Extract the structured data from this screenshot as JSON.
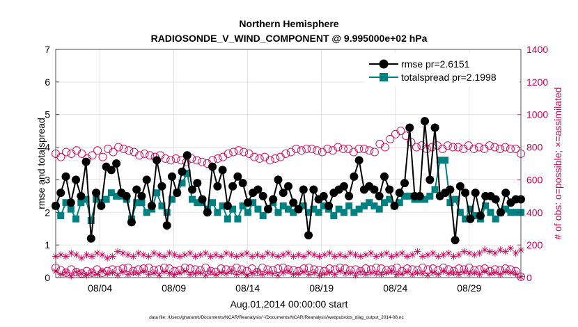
{
  "chart_data": {
    "type": "line",
    "title_line1": "Northern Hemisphere",
    "title_line2": "RADIOSONDE_V_WIND_COMPONENT @ 9.995000e+02 hPa",
    "xlabel": "Aug.01,2014 00:00:00 start",
    "ylabel_left": "rmse and totalspread",
    "ylabel_right": "# of obs: o=possible; ×=assimilated",
    "footnote": "data file: /Users/gharamti/Documents/NCAR/Reanalysis/~/Documents/NCAR/Reanalysis/webpub/obs_diag_output_2014-08.nc",
    "xlim": [
      0,
      31.5
    ],
    "ylim_left": [
      0,
      7
    ],
    "ylim_right": [
      0,
      1400
    ],
    "yticks_left": [
      "0",
      "1",
      "2",
      "3",
      "4",
      "5",
      "6",
      "7"
    ],
    "yticks_right": [
      "0",
      "200",
      "400",
      "600",
      "800",
      "1000",
      "1200",
      "1400"
    ],
    "xticks": [
      {
        "label": "08/04",
        "value": 3
      },
      {
        "label": "08/09",
        "value": 8
      },
      {
        "label": "08/14",
        "value": 13
      },
      {
        "label": "08/19",
        "value": 18
      },
      {
        "label": "08/24",
        "value": 23
      },
      {
        "label": "08/29",
        "value": 28
      }
    ],
    "colors": {
      "rmse": "#000000",
      "totalspread": "#008080",
      "obs": "#cc0055"
    },
    "legend": [
      {
        "label": "rmse pr=2.6151",
        "key": "rmse"
      },
      {
        "label": "totalspread pr=2.1998",
        "key": "totalspread"
      }
    ],
    "rmse": [
      2.2,
      2.6,
      3.1,
      2.3,
      3.0,
      2.5,
      3.55,
      1.2,
      2.6,
      2.2,
      3.4,
      3.3,
      3.5,
      2.6,
      2.5,
      1.7,
      2.7,
      2.5,
      3.0,
      2.2,
      3.6,
      2.8,
      1.6,
      3.1,
      2.6,
      3.25,
      3.75,
      2.7,
      2.9,
      2.4,
      2.0,
      3.4,
      2.8,
      3.3,
      2.2,
      2.8,
      3.1,
      2.9,
      2.3,
      2.6,
      2.7,
      2.5,
      2.1,
      2.4,
      3.0,
      2.6,
      2.8,
      2.3,
      2.1,
      2.7,
      1.3,
      2.7,
      2.4,
      2.5,
      2.2,
      2.6,
      2.7,
      2.8,
      2.5,
      3.1,
      3.6,
      2.7,
      2.8,
      2.7,
      2.5,
      3.1,
      2.7,
      2.2,
      2.6,
      2.9,
      4.6,
      2.5,
      2.5,
      4.8,
      3.0,
      4.6,
      2.5,
      2.6,
      2.7,
      1.15,
      2.8,
      2.6,
      1.8,
      2.6,
      1.9,
      2.5,
      2.5,
      2.4,
      2.0,
      2.6,
      2.3,
      2.4,
      2.4
    ],
    "totalspread": [
      2.2,
      1.9,
      2.3,
      2.1,
      1.8,
      2.3,
      2.4,
      1.75,
      2.4,
      2.3,
      2.4,
      2.6,
      2.5,
      2.5,
      2.4,
      1.8,
      2.3,
      2.3,
      2.0,
      2.1,
      2.6,
      2.2,
      2.0,
      2.4,
      2.6,
      2.9,
      3.2,
      2.4,
      2.3,
      2.3,
      2.1,
      2.3,
      2.0,
      2.2,
      1.8,
      2.1,
      1.8,
      2.2,
      2.0,
      2.3,
      2.1,
      1.9,
      2.1,
      2.3,
      2.0,
      2.2,
      2.1,
      2.0,
      2.1,
      2.2,
      2.0,
      2.1,
      2.0,
      2.2,
      2.1,
      1.9,
      2.1,
      2.0,
      2.2,
      2.0,
      2.1,
      2.2,
      2.3,
      2.2,
      2.1,
      2.3,
      2.4,
      2.2,
      2.3,
      2.5,
      2.5,
      2.4,
      2.4,
      2.4,
      2.5,
      2.7,
      3.6,
      3.6,
      2.3,
      2.4,
      2.0,
      1.8,
      2.1,
      1.9,
      1.8,
      2.2,
      2.0,
      1.8,
      2.0,
      2.1,
      2.0,
      2.0,
      2.0
    ],
    "obs_possible_a": [
      760,
      740,
      770,
      760,
      780,
      760,
      730,
      750,
      780,
      740,
      790,
      770,
      800,
      790,
      780,
      770,
      750,
      760,
      750,
      740,
      750,
      730,
      720,
      730,
      720,
      710,
      730,
      720,
      710,
      700,
      720,
      730,
      740,
      760,
      770,
      780,
      770,
      760,
      740,
      730,
      740,
      720,
      730,
      740,
      760,
      770,
      790,
      780,
      790,
      790,
      780,
      770,
      790,
      780,
      800,
      790,
      790,
      770,
      790,
      790,
      780,
      770,
      820,
      800,
      850,
      880,
      900,
      870,
      830,
      800,
      810,
      790,
      800,
      810,
      790,
      810,
      800,
      800,
      790,
      810,
      790,
      800,
      790,
      810,
      800,
      790,
      800,
      790,
      790,
      760
    ],
    "obs_possible_b": [
      60,
      45,
      30,
      50,
      35,
      25,
      40,
      30,
      50,
      30,
      40,
      50,
      45,
      55,
      60,
      40,
      50,
      55,
      60,
      45,
      50,
      60,
      55,
      40,
      45,
      60,
      55,
      50,
      45,
      60,
      40,
      35,
      55,
      50,
      45,
      60,
      50,
      40,
      55,
      35,
      60,
      50,
      45,
      55,
      60,
      50,
      45,
      40,
      55,
      60,
      50,
      45,
      40,
      55,
      50,
      60,
      55,
      45,
      50,
      40,
      55,
      50,
      60,
      55,
      45,
      50,
      60,
      40,
      55,
      50,
      45,
      60,
      50,
      55,
      45,
      60,
      50,
      40,
      55,
      50,
      60,
      45,
      50,
      55,
      40,
      50,
      45,
      55,
      50,
      40,
      5
    ],
    "obs_assim_a": [
      130,
      140,
      130,
      150,
      140,
      120,
      140,
      130,
      150,
      140,
      120,
      130,
      160,
      150,
      140,
      130,
      150,
      140,
      130,
      150,
      140,
      130,
      150,
      140,
      130,
      140,
      150,
      130,
      140,
      150,
      130,
      140,
      130,
      150,
      140,
      130,
      140,
      150,
      130,
      140,
      130,
      150,
      140,
      130,
      140,
      150,
      130,
      140,
      130,
      150,
      140,
      130,
      140,
      150,
      130,
      140,
      130,
      150,
      140,
      130,
      140,
      150,
      130,
      140,
      150,
      130,
      140,
      150,
      130,
      140,
      160,
      130,
      140,
      150,
      130,
      140,
      150,
      130,
      140,
      160,
      150,
      140,
      150,
      170,
      160,
      150,
      170,
      160,
      180,
      150,
      170
    ],
    "obs_assim_b": [
      40,
      20,
      30,
      10,
      35,
      25,
      15,
      30,
      20,
      40,
      25,
      30,
      15,
      35,
      20,
      30,
      25,
      40,
      20,
      30,
      15,
      35,
      25,
      20,
      30,
      40,
      20,
      25,
      30,
      15,
      35,
      20,
      30,
      25,
      40,
      20,
      30,
      15,
      25,
      35,
      20,
      30,
      25,
      15,
      30,
      40,
      20,
      25,
      35,
      20,
      30,
      15,
      25,
      30,
      20,
      40,
      25,
      30,
      15,
      35,
      20,
      30,
      25,
      20,
      30,
      40,
      20,
      25,
      35,
      20,
      30,
      25,
      15,
      30,
      20,
      40,
      25,
      30,
      20,
      35,
      25,
      30,
      20,
      40,
      25,
      30,
      20,
      35,
      30,
      25,
      5
    ]
  }
}
